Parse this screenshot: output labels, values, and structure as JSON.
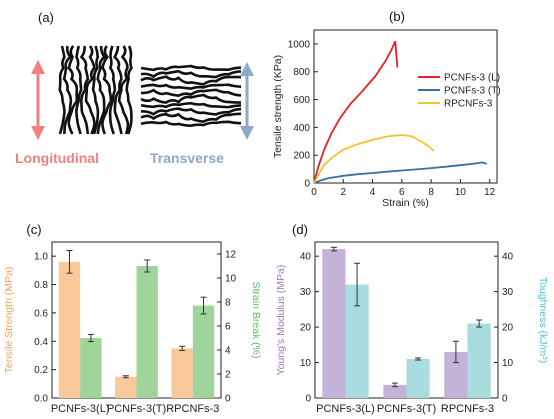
{
  "panels": {
    "a": {
      "label": "(a)",
      "longitudinal": "Longitudinal",
      "transverse": "Transverse",
      "colors": {
        "longitudinal": "#f08080",
        "transverse": "#8fa8c8"
      }
    }
  },
  "chart_data": [
    {
      "panel": "(b)",
      "type": "line",
      "xlabel": "Strain (%)",
      "ylabel": "Tensile strength (KPa)",
      "xlim": [
        0,
        12.5
      ],
      "ylim": [
        0,
        1100
      ],
      "xticks": [
        "0",
        "2",
        "4",
        "6",
        "8",
        "10",
        "12"
      ],
      "yticks": [
        "0",
        "200",
        "400",
        "600",
        "800",
        "1000"
      ],
      "legend": "top-right",
      "series": [
        {
          "name": "PCNFs-3 (L)",
          "color": "#e8202a",
          "points": [
            [
              0,
              0
            ],
            [
              0.3,
              120
            ],
            [
              0.7,
              240
            ],
            [
              1.2,
              360
            ],
            [
              1.8,
              470
            ],
            [
              2.5,
              570
            ],
            [
              3.3,
              660
            ],
            [
              4.2,
              770
            ],
            [
              4.9,
              880
            ],
            [
              5.3,
              960
            ],
            [
              5.55,
              1020
            ],
            [
              5.6,
              950
            ],
            [
              5.7,
              830
            ]
          ]
        },
        {
          "name": "PCNFs-3 (T)",
          "color": "#3a6ea5",
          "points": [
            [
              0,
              0
            ],
            [
              0.5,
              20
            ],
            [
              1,
              35
            ],
            [
              2,
              52
            ],
            [
              3,
              63
            ],
            [
              4,
              72
            ],
            [
              5,
              81
            ],
            [
              6,
              90
            ],
            [
              7,
              98
            ],
            [
              8,
              107
            ],
            [
              9,
              117
            ],
            [
              10,
              128
            ],
            [
              11,
              140
            ],
            [
              11.5,
              148
            ],
            [
              11.8,
              138
            ]
          ]
        },
        {
          "name": "RPCNFs-3",
          "color": "#f5c230",
          "points": [
            [
              0,
              0
            ],
            [
              0.3,
              60
            ],
            [
              0.7,
              130
            ],
            [
              1.2,
              180
            ],
            [
              2,
              240
            ],
            [
              3,
              280
            ],
            [
              4,
              310
            ],
            [
              5,
              335
            ],
            [
              6,
              345
            ],
            [
              6.7,
              335
            ],
            [
              7.3,
              300
            ],
            [
              7.8,
              265
            ],
            [
              8.2,
              230
            ]
          ]
        }
      ]
    },
    {
      "panel": "(c)",
      "type": "bar",
      "categories": [
        "PCNFs-3(L)",
        "PCNFs-3(T)",
        "RPCNFs-3"
      ],
      "ylabel_left": "Tensile Strength (MPa)",
      "ylabel_right": "Strain Break (%)",
      "ylim_left": [
        0,
        1.1
      ],
      "ylim_right": [
        0,
        13
      ],
      "yticks_left": [
        "0.0",
        "0.2",
        "0.4",
        "0.6",
        "0.8",
        "1.0"
      ],
      "yticks_right": [
        "0",
        "2",
        "4",
        "6",
        "8",
        "10",
        "12"
      ],
      "series": [
        {
          "name": "Tensile Strength",
          "axis": "left",
          "color": "#f9c99a",
          "values": [
            0.96,
            0.15,
            0.35
          ],
          "errors": [
            0.08,
            0.007,
            0.015
          ]
        },
        {
          "name": "Strain Break",
          "axis": "right",
          "color": "#9fd49a",
          "values": [
            5.0,
            11.0,
            7.7
          ],
          "errors": [
            0.3,
            0.5,
            0.7
          ]
        }
      ],
      "colors": {
        "left_axis": "#f4a05a",
        "right_axis": "#5fbf5f"
      }
    },
    {
      "panel": "(d)",
      "type": "bar",
      "categories": [
        "PCNFs-3(L)",
        "PCNFs-3(T)",
        "RPCNFs-3"
      ],
      "ylabel_left": "Young's Modulus (MPa)",
      "ylabel_right": "Toughness (kJ/m³)",
      "ylim_left": [
        0,
        44
      ],
      "ylim_right": [
        0,
        44
      ],
      "yticks_left": [
        "0",
        "10",
        "20",
        "30",
        "40"
      ],
      "yticks_right": [
        "0",
        "10",
        "20",
        "30",
        "40"
      ],
      "series": [
        {
          "name": "Young's Modulus",
          "axis": "left",
          "color": "#c3b3d8",
          "values": [
            42,
            3.7,
            13
          ],
          "errors": [
            0.5,
            0.5,
            3
          ]
        },
        {
          "name": "Toughness",
          "axis": "right",
          "color": "#a8dcdf",
          "values": [
            32,
            11,
            21
          ],
          "errors": [
            6,
            0.3,
            1
          ]
        }
      ],
      "colors": {
        "left_axis": "#a07ac0",
        "right_axis": "#4fbfcf"
      }
    }
  ]
}
